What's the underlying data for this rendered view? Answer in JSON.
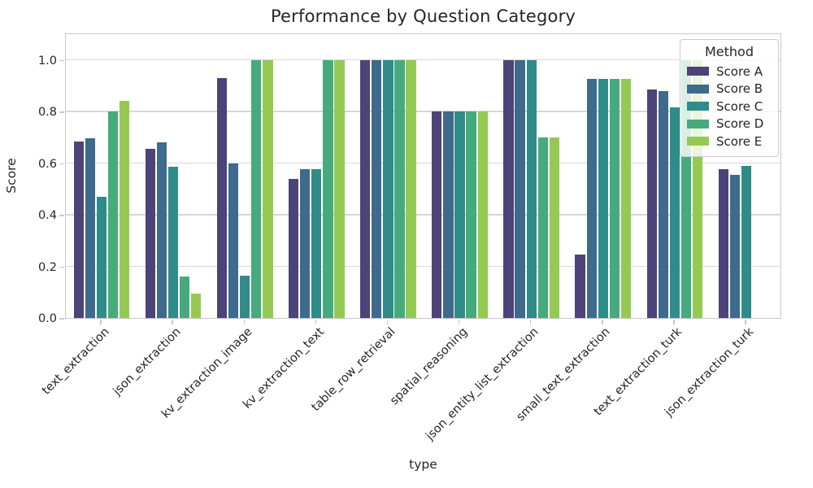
{
  "title": "Performance by Question Category",
  "xlabel": "type",
  "ylabel": "Score",
  "legend": {
    "title": "Method"
  },
  "chart_data": {
    "type": "bar",
    "title": "Performance by Question Category",
    "xlabel": "type",
    "ylabel": "Score",
    "grid": true,
    "legend_position": "upper right",
    "ylim": [
      0,
      1.105
    ],
    "yticks": [
      0.0,
      0.2,
      0.4,
      0.6,
      0.8,
      1.0
    ],
    "categories": [
      "text_extraction",
      "json_extraction",
      "kv_extraction_image",
      "kv_extraction_text",
      "table_row_retrieval",
      "spatial_reasoning",
      "json_entity_list_extraction",
      "small_text_extraction",
      "text_extraction_turk",
      "json_extraction_turk"
    ],
    "series": [
      {
        "name": "Score A",
        "color": "#4c4378",
        "values": [
          0.685,
          0.655,
          0.93,
          0.54,
          1.0,
          0.8,
          1.0,
          0.245,
          0.885,
          0.575
        ]
      },
      {
        "name": "Score B",
        "color": "#3e6a8c",
        "values": [
          0.695,
          0.68,
          0.6,
          0.575,
          1.0,
          0.8,
          1.0,
          0.925,
          0.88,
          0.555
        ]
      },
      {
        "name": "Score C",
        "color": "#2f8c88",
        "values": [
          0.47,
          0.585,
          0.165,
          0.575,
          1.0,
          0.8,
          1.0,
          0.925,
          0.815,
          0.59
        ]
      },
      {
        "name": "Score D",
        "color": "#46ab7c",
        "values": [
          0.8,
          0.16,
          1.0,
          1.0,
          1.0,
          0.8,
          0.7,
          0.925,
          1.0,
          0.0
        ]
      },
      {
        "name": "Score E",
        "color": "#94ca53",
        "values": [
          0.84,
          0.095,
          1.0,
          1.0,
          1.0,
          0.8,
          0.7,
          0.925,
          1.0,
          0.0
        ]
      }
    ]
  }
}
